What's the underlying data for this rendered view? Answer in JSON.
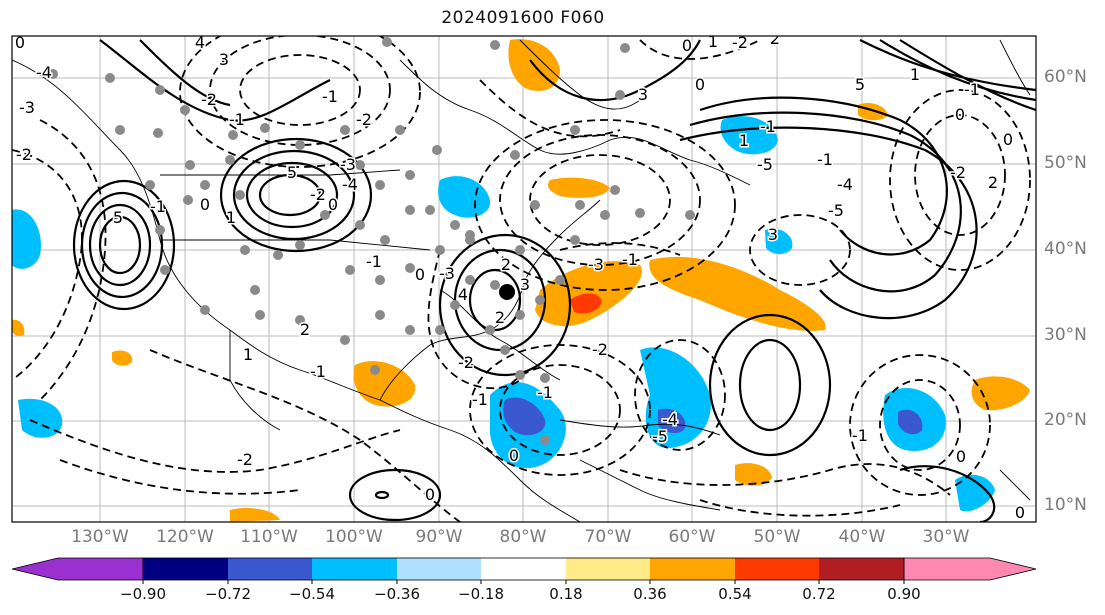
{
  "title": "2024091600 F060",
  "lat_labels": [
    "60°N",
    "50°N",
    "40°N",
    "30°N",
    "20°N",
    "10°N"
  ],
  "lon_labels": [
    "130°W",
    "120°W",
    "110°W",
    "100°W",
    "90°W",
    "80°W",
    "70°W",
    "60°W",
    "50°W",
    "40°W",
    "30°W"
  ],
  "colorbar": {
    "tick_labels": [
      "−0.90",
      "−0.72",
      "−0.54",
      "−0.36",
      "−0.18",
      "0.18",
      "0.36",
      "0.54",
      "0.72",
      "0.90"
    ],
    "colors": [
      "#9b30d0",
      "#000080",
      "#3a58d0",
      "#00bfff",
      "#b0e0ff",
      "#ffffff",
      "#ffeb8a",
      "#ffa500",
      "#ff3a00",
      "#b01e23",
      "#ff88b0"
    ]
  },
  "contour_labels": [
    "0",
    "-4",
    "-3",
    "-2",
    "-2",
    "-1",
    "0",
    "3",
    "4",
    "5",
    "0",
    "-1",
    "-2",
    "-3",
    "-4",
    "5",
    "-1",
    "1",
    "-2",
    "-2",
    "-1",
    "1",
    "2",
    "-1",
    "0",
    "2",
    "4",
    "-3",
    "-2",
    "0",
    "2",
    "3",
    "-1",
    "-1",
    "0",
    "-2",
    "-4",
    "-5",
    "3",
    "-3",
    "-1",
    "0",
    "0",
    "1",
    "-1",
    "1",
    "-2",
    "2",
    "-1",
    "-4",
    "-5",
    "5",
    "-5",
    "3",
    "0",
    "1",
    "-1",
    "0",
    "-2",
    "2",
    "0",
    "-1",
    "0"
  ],
  "colors": {
    "grid": "#bbbbbb",
    "axis_text": "#7a7a7a",
    "contour": "#000000"
  }
}
